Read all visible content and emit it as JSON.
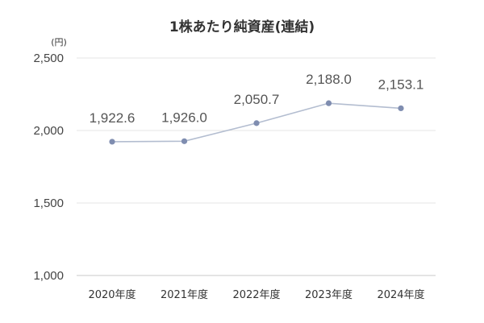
{
  "chart_data": {
    "type": "line",
    "title": "1株あたり純資産(連結)",
    "unit_label": "(円)",
    "xlabel": "",
    "ylabel": "",
    "categories": [
      "2020年度",
      "2021年度",
      "2022年度",
      "2023年度",
      "2024年度"
    ],
    "series": [
      {
        "values": [
          1922.6,
          1926.0,
          2050.7,
          2188.0,
          2153.1
        ]
      }
    ],
    "data_labels": [
      "1,922.6",
      "1,926.0",
      "2,050.7",
      "2,188.0",
      "2,153.1"
    ],
    "ylim": [
      1000,
      2500
    ],
    "yticks": [
      1000,
      1500,
      2000,
      2500
    ],
    "ytick_labels": [
      "1,000",
      "1,500",
      "2,000",
      "2,500"
    ],
    "grid": true,
    "legend": "none",
    "colors": {
      "line": "#b3bdd0",
      "marker": "#7f8db0"
    }
  }
}
